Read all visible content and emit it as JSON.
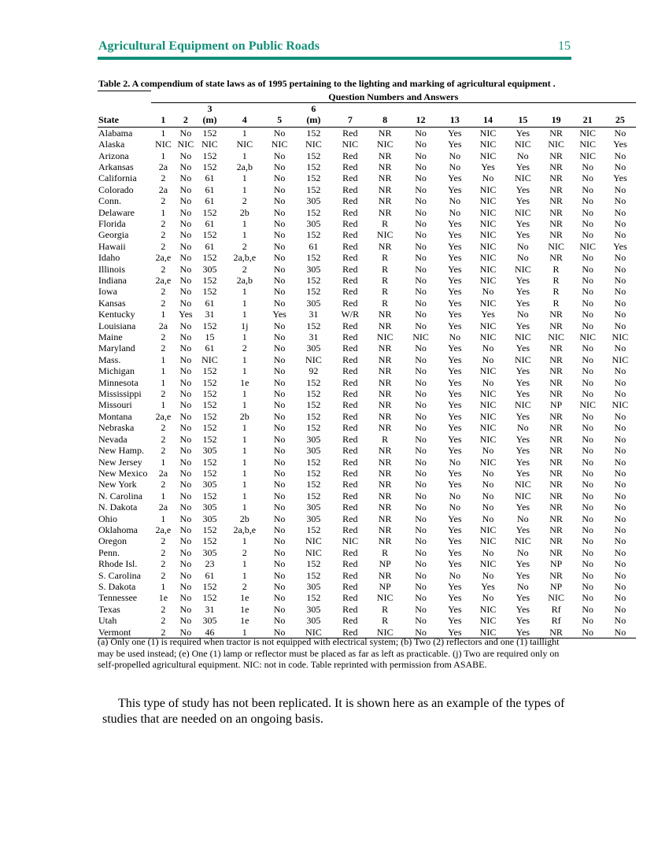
{
  "header": {
    "title": "Agricultural Equipment on Public Roads",
    "page_number": "15"
  },
  "table": {
    "caption": "Table 2. A compendium of state laws as of 1995 pertaining to the lighting and marking of agricultural equipment .",
    "group_header": "Question Numbers and Answers",
    "columns": [
      "State",
      "1",
      "2",
      "3\n(m)",
      "4",
      "5",
      "6\n(m)",
      "7",
      "8",
      "12",
      "13",
      "14",
      "15",
      "19",
      "21",
      "25"
    ],
    "rows": [
      [
        "Alabama",
        "1",
        "No",
        "152",
        "1",
        "No",
        "152",
        "Red",
        "NR",
        "No",
        "Yes",
        "NIC",
        "Yes",
        "NR",
        "NIC",
        "No"
      ],
      [
        "Alaska",
        "NIC",
        "NIC",
        "NIC",
        "NIC",
        "NIC",
        "NIC",
        "NIC",
        "NIC",
        "No",
        "Yes",
        "NIC",
        "NIC",
        "NIC",
        "NIC",
        "Yes"
      ],
      [
        "Arizona",
        "1",
        "No",
        "152",
        "1",
        "No",
        "152",
        "Red",
        "NR",
        "No",
        "No",
        "NIC",
        "No",
        "NR",
        "NIC",
        "No"
      ],
      [
        "Arkansas",
        "2a",
        "No",
        "152",
        "2a,b",
        "No",
        "152",
        "Red",
        "NR",
        "No",
        "No",
        "Yes",
        "Yes",
        "NR",
        "No",
        "No"
      ],
      [
        "California",
        "2",
        "No",
        "61",
        "1",
        "No",
        "152",
        "Red",
        "NR",
        "No",
        "Yes",
        "No",
        "NIC",
        "NR",
        "No",
        "Yes"
      ],
      [
        "Colorado",
        "2a",
        "No",
        "61",
        "1",
        "No",
        "152",
        "Red",
        "NR",
        "No",
        "Yes",
        "NIC",
        "Yes",
        "NR",
        "No",
        "No"
      ],
      [
        "Conn.",
        "2",
        "No",
        "61",
        "2",
        "No",
        "305",
        "Red",
        "NR",
        "No",
        "No",
        "NIC",
        "Yes",
        "NR",
        "No",
        "No"
      ],
      [
        "Delaware",
        "1",
        "No",
        "152",
        "2b",
        "No",
        "152",
        "Red",
        "NR",
        "No",
        "No",
        "NIC",
        "NIC",
        "NR",
        "No",
        "No"
      ],
      [
        "Florida",
        "2",
        "No",
        "61",
        "1",
        "No",
        "305",
        "Red",
        "R",
        "No",
        "Yes",
        "NIC",
        "Yes",
        "NR",
        "No",
        "No"
      ],
      [
        "Georgia",
        "2",
        "No",
        "152",
        "1",
        "No",
        "152",
        "Red",
        "NIC",
        "No",
        "Yes",
        "NIC",
        "Yes",
        "NR",
        "No",
        "No"
      ],
      [
        "Hawaii",
        "2",
        "No",
        "61",
        "2",
        "No",
        "61",
        "Red",
        "NR",
        "No",
        "Yes",
        "NIC",
        "No",
        "NIC",
        "NIC",
        "Yes"
      ],
      [
        "Idaho",
        "2a,e",
        "No",
        "152",
        "2a,b,e",
        "No",
        "152",
        "Red",
        "R",
        "No",
        "Yes",
        "NIC",
        "No",
        "NR",
        "No",
        "No"
      ],
      [
        "Illinois",
        "2",
        "No",
        "305",
        "2",
        "No",
        "305",
        "Red",
        "R",
        "No",
        "Yes",
        "NIC",
        "NIC",
        "R",
        "No",
        "No"
      ],
      [
        "Indiana",
        "2a,e",
        "No",
        "152",
        "2a,b",
        "No",
        "152",
        "Red",
        "R",
        "No",
        "Yes",
        "NIC",
        "Yes",
        "R",
        "No",
        "No"
      ],
      [
        "Iowa",
        "2",
        "No",
        "152",
        "1",
        "No",
        "152",
        "Red",
        "R",
        "No",
        "Yes",
        "No",
        "Yes",
        "R",
        "No",
        "No"
      ],
      [
        "Kansas",
        "2",
        "No",
        "61",
        "1",
        "No",
        "305",
        "Red",
        "R",
        "No",
        "Yes",
        "NIC",
        "Yes",
        "R",
        "No",
        "No"
      ],
      [
        "Kentucky",
        "1",
        "Yes",
        "31",
        "1",
        "Yes",
        "31",
        "W/R",
        "NR",
        "No",
        "Yes",
        "Yes",
        "No",
        "NR",
        "No",
        "No"
      ],
      [
        "Louisiana",
        "2a",
        "No",
        "152",
        "1j",
        "No",
        "152",
        "Red",
        "NR",
        "No",
        "Yes",
        "NIC",
        "Yes",
        "NR",
        "No",
        "No"
      ],
      [
        "Maine",
        "2",
        "No",
        "15",
        "1",
        "No",
        "31",
        "Red",
        "NIC",
        "NIC",
        "No",
        "NIC",
        "NIC",
        "NIC",
        "NIC",
        "NIC"
      ],
      [
        "Maryland",
        "2",
        "No",
        "61",
        "2",
        "No",
        "305",
        "Red",
        "NR",
        "No",
        "Yes",
        "No",
        "Yes",
        "NR",
        "No",
        "No"
      ],
      [
        "Mass.",
        "1",
        "No",
        "NIC",
        "1",
        "No",
        "NIC",
        "Red",
        "NR",
        "No",
        "Yes",
        "No",
        "NIC",
        "NR",
        "No",
        "NIC"
      ],
      [
        "Michigan",
        "1",
        "No",
        "152",
        "1",
        "No",
        "92",
        "Red",
        "NR",
        "No",
        "Yes",
        "NIC",
        "Yes",
        "NR",
        "No",
        "No"
      ],
      [
        "Minnesota",
        "1",
        "No",
        "152",
        "1e",
        "No",
        "152",
        "Red",
        "NR",
        "No",
        "Yes",
        "No",
        "Yes",
        "NR",
        "No",
        "No"
      ],
      [
        "Mississippi",
        "2",
        "No",
        "152",
        "1",
        "No",
        "152",
        "Red",
        "NR",
        "No",
        "Yes",
        "NIC",
        "Yes",
        "NR",
        "No",
        "No"
      ],
      [
        "Missouri",
        "1",
        "No",
        "152",
        "1",
        "No",
        "152",
        "Red",
        "NR",
        "No",
        "Yes",
        "NIC",
        "NIC",
        "NP",
        "NIC",
        "NIC"
      ],
      [
        "Montana",
        "2a,e",
        "No",
        "152",
        "2b",
        "No",
        "152",
        "Red",
        "NR",
        "No",
        "Yes",
        "NIC",
        "Yes",
        "NR",
        "No",
        "No"
      ],
      [
        "Nebraska",
        "2",
        "No",
        "152",
        "1",
        "No",
        "152",
        "Red",
        "NR",
        "No",
        "Yes",
        "NIC",
        "No",
        "NR",
        "No",
        "No"
      ],
      [
        "Nevada",
        "2",
        "No",
        "152",
        "1",
        "No",
        "305",
        "Red",
        "R",
        "No",
        "Yes",
        "NIC",
        "Yes",
        "NR",
        "No",
        "No"
      ],
      [
        "New Hamp.",
        "2",
        "No",
        "305",
        "1",
        "No",
        "305",
        "Red",
        "NR",
        "No",
        "Yes",
        "No",
        "Yes",
        "NR",
        "No",
        "No"
      ],
      [
        "New Jersey",
        "1",
        "No",
        "152",
        "1",
        "No",
        "152",
        "Red",
        "NR",
        "No",
        "No",
        "NIC",
        "Yes",
        "NR",
        "No",
        "No"
      ],
      [
        "New Mexico",
        "2a",
        "No",
        "152",
        "1",
        "No",
        "152",
        "Red",
        "NR",
        "No",
        "Yes",
        "No",
        "Yes",
        "NR",
        "No",
        "No"
      ],
      [
        "New York",
        "2",
        "No",
        "305",
        "1",
        "No",
        "152",
        "Red",
        "NR",
        "No",
        "Yes",
        "No",
        "NIC",
        "NR",
        "No",
        "No"
      ],
      [
        "N. Carolina",
        "1",
        "No",
        "152",
        "1",
        "No",
        "152",
        "Red",
        "NR",
        "No",
        "No",
        "No",
        "NIC",
        "NR",
        "No",
        "No"
      ],
      [
        "N. Dakota",
        "2a",
        "No",
        "305",
        "1",
        "No",
        "305",
        "Red",
        "NR",
        "No",
        "No",
        "No",
        "Yes",
        "NR",
        "No",
        "No"
      ],
      [
        "Ohio",
        "1",
        "No",
        "305",
        "2b",
        "No",
        "305",
        "Red",
        "NR",
        "No",
        "Yes",
        "No",
        "No",
        "NR",
        "No",
        "No"
      ],
      [
        "Oklahoma",
        "2a,e",
        "No",
        "152",
        "2a,b,e",
        "No",
        "152",
        "Red",
        "NR",
        "No",
        "Yes",
        "NIC",
        "Yes",
        "NR",
        "No",
        "No"
      ],
      [
        "Oregon",
        "2",
        "No",
        "152",
        "1",
        "No",
        "NIC",
        "NIC",
        "NR",
        "No",
        "Yes",
        "NIC",
        "NIC",
        "NR",
        "No",
        "No"
      ],
      [
        "Penn.",
        "2",
        "No",
        "305",
        "2",
        "No",
        "NIC",
        "Red",
        "R",
        "No",
        "Yes",
        "No",
        "No",
        "NR",
        "No",
        "No"
      ],
      [
        "Rhode Isl.",
        "2",
        "No",
        "23",
        "1",
        "No",
        "152",
        "Red",
        "NP",
        "No",
        "Yes",
        "NIC",
        "Yes",
        "NP",
        "No",
        "No"
      ],
      [
        "S. Carolina",
        "2",
        "No",
        "61",
        "1",
        "No",
        "152",
        "Red",
        "NR",
        "No",
        "No",
        "No",
        "Yes",
        "NR",
        "No",
        "No"
      ],
      [
        "S. Dakota",
        "1",
        "No",
        "152",
        "2",
        "No",
        "305",
        "Red",
        "NP",
        "No",
        "Yes",
        "Yes",
        "No",
        "NP",
        "No",
        "No"
      ],
      [
        "Tennessee",
        "1e",
        "No",
        "152",
        "1e",
        "No",
        "152",
        "Red",
        "NIC",
        "No",
        "Yes",
        "No",
        "Yes",
        "NIC",
        "No",
        "No"
      ],
      [
        "Texas",
        "2",
        "No",
        "31",
        "1e",
        "No",
        "305",
        "Red",
        "R",
        "No",
        "Yes",
        "NIC",
        "Yes",
        "Rf",
        "No",
        "No"
      ],
      [
        "Utah",
        "2",
        "No",
        "305",
        "1e",
        "No",
        "305",
        "Red",
        "R",
        "No",
        "Yes",
        "NIC",
        "Yes",
        "Rf",
        "No",
        "No"
      ],
      [
        "Vermont",
        "2",
        "No",
        "46",
        "1",
        "No",
        "NIC",
        "Red",
        "NIC",
        "No",
        "Yes",
        "NIC",
        "Yes",
        "NR",
        "No",
        "No"
      ]
    ],
    "footnote": "(a) Only one (1) is required when tractor is not equipped with electrical system; (b) Two (2) reflectors and one (1) taillight may be used instead; (e) One (1) lamp or reflector must be placed as far as left as practicable. (j) Two are required only on self-propelled agricultural equipment. NIC: not in code. Table reprinted with permission from ASABE."
  },
  "body": {
    "paragraph": "This type of study has not been replicated. It is shown here as an example of the types of studies that are needed on an ongoing basis."
  }
}
